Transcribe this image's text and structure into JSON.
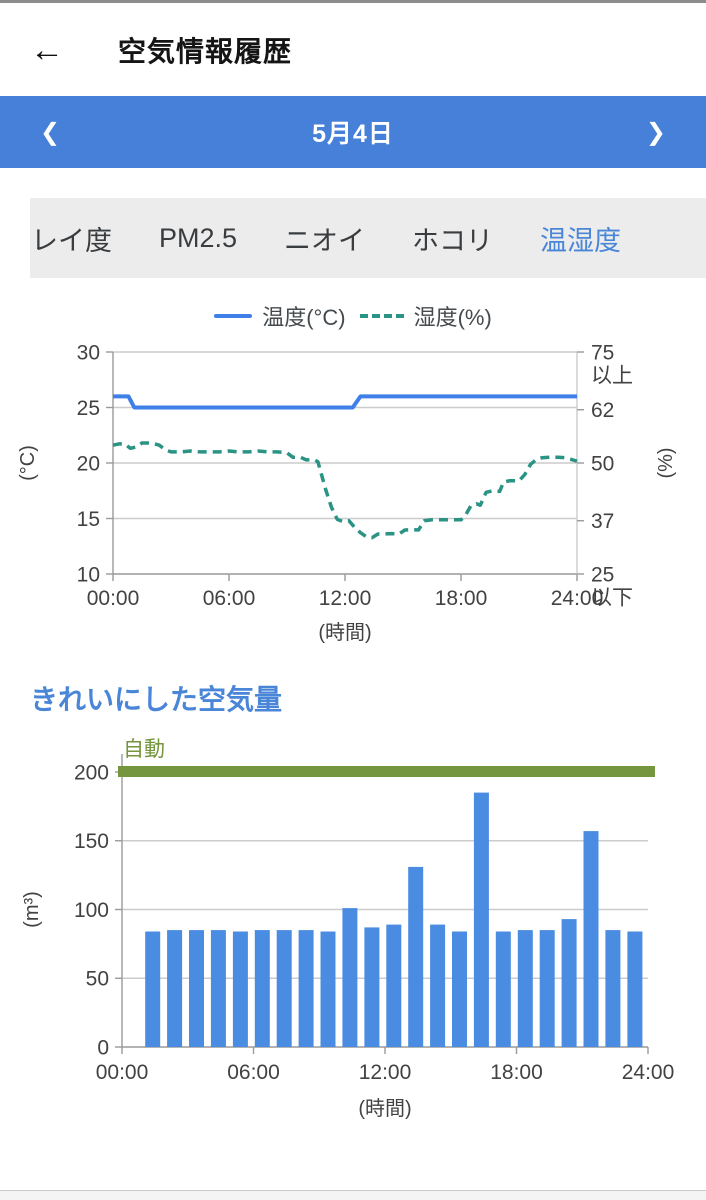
{
  "header": {
    "back_icon": "←",
    "title": "空気情報履歴"
  },
  "date_nav": {
    "prev_icon": "❮",
    "label": "5月4日",
    "next_icon": "❯",
    "bg_color": "#4680d8"
  },
  "tabs": {
    "items": [
      {
        "label": "キレイ度",
        "selected": false
      },
      {
        "label": "PM2.5",
        "selected": false
      },
      {
        "label": "ニオイ",
        "selected": false
      },
      {
        "label": "ホコリ",
        "selected": false
      },
      {
        "label": "温湿度",
        "selected": true
      }
    ],
    "selected_color": "#4a86d8"
  },
  "chart_data": [
    {
      "type": "line",
      "title": "",
      "xlabel": "(時間)",
      "xlim": [
        0,
        24
      ],
      "x_ticks": [
        0,
        6,
        12,
        18,
        24
      ],
      "x_tick_labels": [
        "00:00",
        "06:00",
        "12:00",
        "18:00",
        "24:00"
      ],
      "grid": "horizontal",
      "legend_position": "top",
      "y_left": {
        "label": "(°C)",
        "lim": [
          10,
          30
        ],
        "ticks": [
          10,
          15,
          20,
          25,
          30
        ]
      },
      "y_right": {
        "label": "(%)",
        "lim": [
          25,
          75
        ],
        "ticks": [
          25,
          37,
          50,
          62,
          75
        ],
        "tick_labels": [
          "25\n以下",
          "37",
          "50",
          "62",
          "75\n以上"
        ]
      },
      "series": [
        {
          "name": "温度(°C)",
          "axis": "left",
          "style": "solid",
          "color": "#3e7fe8",
          "points": [
            [
              0,
              26
            ],
            [
              0.8,
              26
            ],
            [
              1.1,
              25
            ],
            [
              12.4,
              25
            ],
            [
              12.8,
              26
            ],
            [
              24,
              26
            ]
          ]
        },
        {
          "name": "湿度(%)",
          "axis": "right",
          "style": "dashed",
          "color": "#2a9384",
          "points": [
            [
              0,
              54
            ],
            [
              0.3,
              54.3
            ],
            [
              0.6,
              54.3
            ],
            [
              0.9,
              53.3
            ],
            [
              1.2,
              53.6
            ],
            [
              1.5,
              54.5
            ],
            [
              1.8,
              54.5
            ],
            [
              2.1,
              54.4
            ],
            [
              2.4,
              54
            ],
            [
              2.7,
              53
            ],
            [
              3,
              52.5
            ],
            [
              3.5,
              52.5
            ],
            [
              4,
              52.7
            ],
            [
              4.5,
              52.5
            ],
            [
              5,
              52.5
            ],
            [
              5.5,
              52.5
            ],
            [
              6,
              52.7
            ],
            [
              6.5,
              52.5
            ],
            [
              7,
              52.5
            ],
            [
              7.5,
              52.7
            ],
            [
              8,
              52.5
            ],
            [
              8.5,
              52.5
            ],
            [
              9,
              52.3
            ],
            [
              9.3,
              51.3
            ],
            [
              9.7,
              51.3
            ],
            [
              10,
              50.7
            ],
            [
              10.4,
              50.7
            ],
            [
              10.6,
              50.3
            ],
            [
              11,
              44
            ],
            [
              11.3,
              40
            ],
            [
              11.6,
              37.3
            ],
            [
              11.9,
              36.8
            ],
            [
              12.2,
              37
            ],
            [
              12.5,
              35.5
            ],
            [
              12.8,
              34.3
            ],
            [
              13.1,
              33.4
            ],
            [
              13.4,
              33.2
            ],
            [
              13.7,
              34
            ],
            [
              14,
              34
            ],
            [
              14.4,
              34.1
            ],
            [
              14.8,
              34
            ],
            [
              15.1,
              34.9
            ],
            [
              15.5,
              35
            ],
            [
              15.8,
              34.9
            ],
            [
              16.1,
              37
            ],
            [
              16.5,
              37.2
            ],
            [
              17,
              37.2
            ],
            [
              17.5,
              37.2
            ],
            [
              18,
              37.2
            ],
            [
              18.2,
              38
            ],
            [
              18.5,
              40.3
            ],
            [
              18.8,
              40.8
            ],
            [
              19,
              40.5
            ],
            [
              19.3,
              43.4
            ],
            [
              19.6,
              43.7
            ],
            [
              20,
              43.6
            ],
            [
              20.2,
              45.7
            ],
            [
              20.5,
              46
            ],
            [
              21,
              46
            ],
            [
              21.3,
              47.4
            ],
            [
              21.6,
              49.7
            ],
            [
              21.9,
              50.8
            ],
            [
              22.2,
              51.2
            ],
            [
              22.6,
              51.3
            ],
            [
              23,
              51.3
            ],
            [
              23.4,
              51.2
            ],
            [
              23.7,
              50.8
            ],
            [
              24,
              50.4
            ]
          ]
        }
      ]
    },
    {
      "type": "bar",
      "title": "きれいにした空気量",
      "xlabel": "(時間)",
      "ylabel": "(m³)",
      "xlim": [
        0,
        24
      ],
      "x_ticks": [
        0,
        6,
        12,
        18,
        24
      ],
      "x_tick_labels": [
        "00:00",
        "06:00",
        "12:00",
        "18:00",
        "24:00"
      ],
      "ylim": [
        0,
        200
      ],
      "y_ticks": [
        0,
        50,
        100,
        150,
        200
      ],
      "grid": "horizontal",
      "bar_color": "#4a8ce2",
      "threshold": {
        "label": "自動",
        "value": 200,
        "color": "#75953f"
      },
      "hours": [
        1,
        2,
        3,
        4,
        5,
        6,
        7,
        8,
        9,
        10,
        11,
        12,
        13,
        14,
        15,
        16,
        17,
        18,
        19,
        20,
        21,
        22,
        23
      ],
      "values": [
        84,
        85,
        85,
        85,
        84,
        85,
        85,
        85,
        84,
        101,
        87,
        89,
        131,
        89,
        84,
        185,
        84,
        85,
        85,
        93,
        157,
        85,
        84
      ]
    }
  ],
  "colors": {
    "accent_blue": "#4a86d8",
    "temperature_line": "#3e7fe8",
    "humidity_line": "#2a9384",
    "bar_blue": "#4a8ce2",
    "auto_green": "#75953f"
  }
}
